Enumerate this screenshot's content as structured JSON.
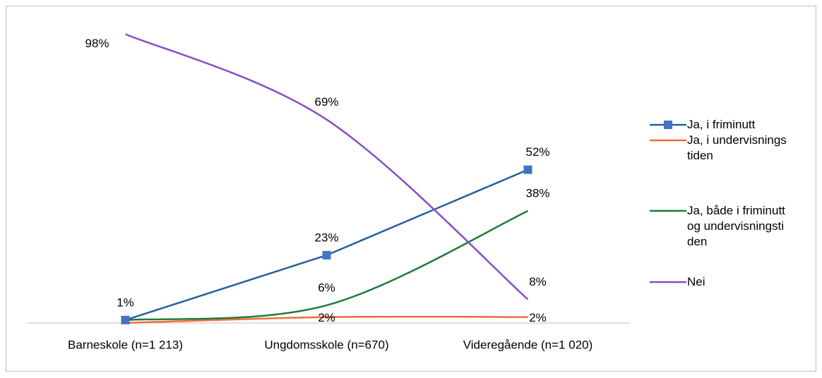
{
  "chart_data": {
    "type": "line",
    "categories": [
      "Barneskole (n=1 213)",
      "Ungdomsskole (n=670)",
      "Videregående (n=1 020)"
    ],
    "ylim": [
      0,
      100
    ],
    "series": [
      {
        "name": "Ja, i friminutt",
        "color": "#255e9c",
        "marker": "square",
        "marker_color": "#4472c4",
        "smooth": false,
        "values": [
          1,
          23,
          52
        ],
        "value_labels": [
          "1%",
          "23%",
          "52%"
        ]
      },
      {
        "name": "Ja, i undervisningstiden",
        "color": "#f26b3a",
        "smooth": true,
        "values": [
          0,
          2,
          2
        ],
        "value_labels": [
          null,
          "2%",
          "2%"
        ]
      },
      {
        "name": "Ja, både i friminutt og undervisningstiden",
        "color": "#1e7a3a",
        "smooth": true,
        "values": [
          1,
          6,
          38
        ],
        "value_labels": [
          null,
          "6%",
          "38%"
        ]
      },
      {
        "name": "Nei",
        "color": "#8a4cc2",
        "smooth": true,
        "values": [
          98,
          69,
          8
        ],
        "value_labels": [
          "98%",
          "69%",
          "8%"
        ]
      }
    ]
  }
}
